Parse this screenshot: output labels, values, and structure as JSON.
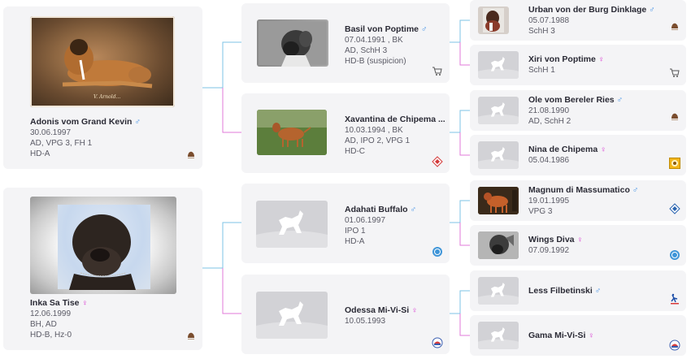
{
  "parents": [
    {
      "name": "Adonis vom Grand Kevin",
      "sex": "♂",
      "sex_type": "male",
      "date": "30.06.1997",
      "titles": "AD, VPG 3, FH 1",
      "health": "HD-A",
      "photo_caption": "V. Arnold...",
      "badge": "breeder-logo-icon"
    },
    {
      "name": "Inka Sa Tise",
      "sex": "♀",
      "sex_type": "female",
      "date": "12.06.1999",
      "titles": "BH, AD",
      "health": "HD-B, Hz-0",
      "badge": "breeder-logo-icon"
    }
  ],
  "grandparents": [
    {
      "name": "Basil von Poptime",
      "sex": "♂",
      "date": "07.04.1991 , BK",
      "titles": "AD, SchH 3",
      "health": "HD-B (suspicion)",
      "badge": "cart-icon"
    },
    {
      "name": "Xavantina de Chipema ...",
      "sex": "♀",
      "date": "10.03.1994 , BK",
      "titles": "AD, IPO 2, VPG 1",
      "health": "HD-C",
      "badge": "diamond-logo-icon"
    },
    {
      "name": "Adahati Buffalo",
      "sex": "♂",
      "date": "01.06.1997",
      "titles": "IPO 1",
      "health": "HD-A",
      "badge": "club-circle-icon"
    },
    {
      "name": "Odessa Mi-Vi-Si",
      "sex": "♀",
      "date": "10.05.1993",
      "titles": "",
      "health": "",
      "badge": "club-round-icon"
    }
  ],
  "great_grandparents": [
    {
      "name": "Urban von der Burg Dinklage",
      "sex": "♂",
      "date": "05.07.1988",
      "titles": "SchH 3",
      "badge": "breeder-logo-icon"
    },
    {
      "name": "Xiri von Poptime",
      "sex": "♀",
      "date": "",
      "titles": "SchH 1",
      "badge": "cart-icon"
    },
    {
      "name": "Ole vom Bereler Ries",
      "sex": "♂",
      "date": "21.08.1990",
      "titles": "AD, SchH 2",
      "badge": "breeder-logo-icon"
    },
    {
      "name": "Nina de Chipema",
      "sex": "♀",
      "date": "05.04.1986",
      "titles": "",
      "badge": "yellow-dog-logo-icon"
    },
    {
      "name": "Magnum di Massumatico",
      "sex": "♂",
      "date": "19.01.1995",
      "titles": "VPG 3",
      "badge": "diamond-blue-icon"
    },
    {
      "name": "Wings Diva",
      "sex": "♀",
      "date": "07.09.1992",
      "titles": "",
      "badge": "club-circle-icon"
    },
    {
      "name": "Less Filbetinski",
      "sex": "♂",
      "date": "",
      "titles": "",
      "badge": "runner-logo-icon"
    },
    {
      "name": "Gama Mi-Vi-Si",
      "sex": "♀",
      "date": "",
      "titles": "",
      "badge": "club-round-icon"
    }
  ]
}
